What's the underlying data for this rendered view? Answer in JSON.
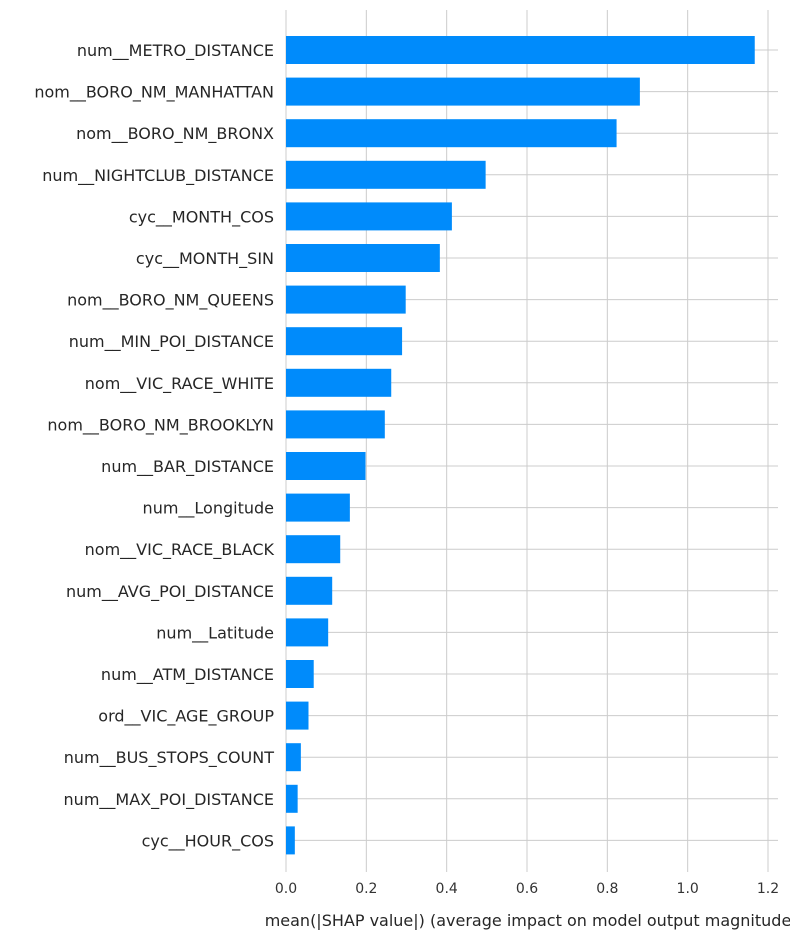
{
  "chart_data": {
    "type": "bar",
    "orientation": "horizontal",
    "categories": [
      "num__METRO_DISTANCE",
      "nom__BORO_NM_MANHATTAN",
      "nom__BORO_NM_BRONX",
      "num__NIGHTCLUB_DISTANCE",
      "cyc__MONTH_COS",
      "cyc__MONTH_SIN",
      "nom__BORO_NM_QUEENS",
      "num__MIN_POI_DISTANCE",
      "nom__VIC_RACE_WHITE",
      "nom__BORO_NM_BROOKLYN",
      "num__BAR_DISTANCE",
      "num__Longitude",
      "nom__VIC_RACE_BLACK",
      "num__AVG_POI_DISTANCE",
      "num__Latitude",
      "num__ATM_DISTANCE",
      "ord__VIC_AGE_GROUP",
      "num__BUS_STOPS_COUNT",
      "num__MAX_POI_DISTANCE",
      "cyc__HOUR_COS"
    ],
    "values": [
      1.167,
      0.881,
      0.823,
      0.497,
      0.413,
      0.383,
      0.298,
      0.289,
      0.262,
      0.246,
      0.198,
      0.159,
      0.135,
      0.115,
      0.105,
      0.069,
      0.056,
      0.037,
      0.029,
      0.022
    ],
    "title": "",
    "xlabel": "mean(|SHAP value|) (average impact on model output magnitude",
    "ylabel": "",
    "xlim": [
      0,
      1.22
    ],
    "xticks": [
      "0.0",
      "0.2",
      "0.4",
      "0.6",
      "0.8",
      "1.0",
      "1.2"
    ],
    "xtick_values": [
      0,
      0.2,
      0.4,
      0.6,
      0.8,
      1.0,
      1.2
    ],
    "bar_color": "#008bfb",
    "grid_color": "#cccccc",
    "grid": true
  }
}
